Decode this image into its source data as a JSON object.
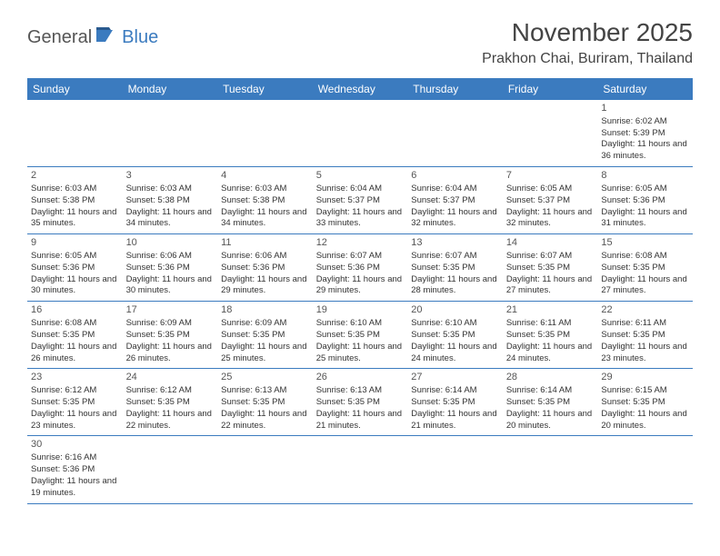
{
  "logo": {
    "part1": "General",
    "part2": "Blue"
  },
  "title": "November 2025",
  "location": "Prakhon Chai, Buriram, Thailand",
  "colors": {
    "header_bg": "#3b7bbf",
    "header_text": "#ffffff",
    "border": "#3b7bbf",
    "text": "#333333",
    "logo_gray": "#555555",
    "logo_blue": "#3b7bbf"
  },
  "day_headers": [
    "Sunday",
    "Monday",
    "Tuesday",
    "Wednesday",
    "Thursday",
    "Friday",
    "Saturday"
  ],
  "weeks": [
    [
      null,
      null,
      null,
      null,
      null,
      null,
      {
        "n": "1",
        "sr": "6:02 AM",
        "ss": "5:39 PM",
        "dl": "11 hours and 36 minutes."
      }
    ],
    [
      {
        "n": "2",
        "sr": "6:03 AM",
        "ss": "5:38 PM",
        "dl": "11 hours and 35 minutes."
      },
      {
        "n": "3",
        "sr": "6:03 AM",
        "ss": "5:38 PM",
        "dl": "11 hours and 34 minutes."
      },
      {
        "n": "4",
        "sr": "6:03 AM",
        "ss": "5:38 PM",
        "dl": "11 hours and 34 minutes."
      },
      {
        "n": "5",
        "sr": "6:04 AM",
        "ss": "5:37 PM",
        "dl": "11 hours and 33 minutes."
      },
      {
        "n": "6",
        "sr": "6:04 AM",
        "ss": "5:37 PM",
        "dl": "11 hours and 32 minutes."
      },
      {
        "n": "7",
        "sr": "6:05 AM",
        "ss": "5:37 PM",
        "dl": "11 hours and 32 minutes."
      },
      {
        "n": "8",
        "sr": "6:05 AM",
        "ss": "5:36 PM",
        "dl": "11 hours and 31 minutes."
      }
    ],
    [
      {
        "n": "9",
        "sr": "6:05 AM",
        "ss": "5:36 PM",
        "dl": "11 hours and 30 minutes."
      },
      {
        "n": "10",
        "sr": "6:06 AM",
        "ss": "5:36 PM",
        "dl": "11 hours and 30 minutes."
      },
      {
        "n": "11",
        "sr": "6:06 AM",
        "ss": "5:36 PM",
        "dl": "11 hours and 29 minutes."
      },
      {
        "n": "12",
        "sr": "6:07 AM",
        "ss": "5:36 PM",
        "dl": "11 hours and 29 minutes."
      },
      {
        "n": "13",
        "sr": "6:07 AM",
        "ss": "5:35 PM",
        "dl": "11 hours and 28 minutes."
      },
      {
        "n": "14",
        "sr": "6:07 AM",
        "ss": "5:35 PM",
        "dl": "11 hours and 27 minutes."
      },
      {
        "n": "15",
        "sr": "6:08 AM",
        "ss": "5:35 PM",
        "dl": "11 hours and 27 minutes."
      }
    ],
    [
      {
        "n": "16",
        "sr": "6:08 AM",
        "ss": "5:35 PM",
        "dl": "11 hours and 26 minutes."
      },
      {
        "n": "17",
        "sr": "6:09 AM",
        "ss": "5:35 PM",
        "dl": "11 hours and 26 minutes."
      },
      {
        "n": "18",
        "sr": "6:09 AM",
        "ss": "5:35 PM",
        "dl": "11 hours and 25 minutes."
      },
      {
        "n": "19",
        "sr": "6:10 AM",
        "ss": "5:35 PM",
        "dl": "11 hours and 25 minutes."
      },
      {
        "n": "20",
        "sr": "6:10 AM",
        "ss": "5:35 PM",
        "dl": "11 hours and 24 minutes."
      },
      {
        "n": "21",
        "sr": "6:11 AM",
        "ss": "5:35 PM",
        "dl": "11 hours and 24 minutes."
      },
      {
        "n": "22",
        "sr": "6:11 AM",
        "ss": "5:35 PM",
        "dl": "11 hours and 23 minutes."
      }
    ],
    [
      {
        "n": "23",
        "sr": "6:12 AM",
        "ss": "5:35 PM",
        "dl": "11 hours and 23 minutes."
      },
      {
        "n": "24",
        "sr": "6:12 AM",
        "ss": "5:35 PM",
        "dl": "11 hours and 22 minutes."
      },
      {
        "n": "25",
        "sr": "6:13 AM",
        "ss": "5:35 PM",
        "dl": "11 hours and 22 minutes."
      },
      {
        "n": "26",
        "sr": "6:13 AM",
        "ss": "5:35 PM",
        "dl": "11 hours and 21 minutes."
      },
      {
        "n": "27",
        "sr": "6:14 AM",
        "ss": "5:35 PM",
        "dl": "11 hours and 21 minutes."
      },
      {
        "n": "28",
        "sr": "6:14 AM",
        "ss": "5:35 PM",
        "dl": "11 hours and 20 minutes."
      },
      {
        "n": "29",
        "sr": "6:15 AM",
        "ss": "5:35 PM",
        "dl": "11 hours and 20 minutes."
      }
    ],
    [
      {
        "n": "30",
        "sr": "6:16 AM",
        "ss": "5:36 PM",
        "dl": "11 hours and 19 minutes."
      },
      null,
      null,
      null,
      null,
      null,
      null
    ]
  ],
  "labels": {
    "sunrise": "Sunrise:",
    "sunset": "Sunset:",
    "daylight": "Daylight:"
  }
}
